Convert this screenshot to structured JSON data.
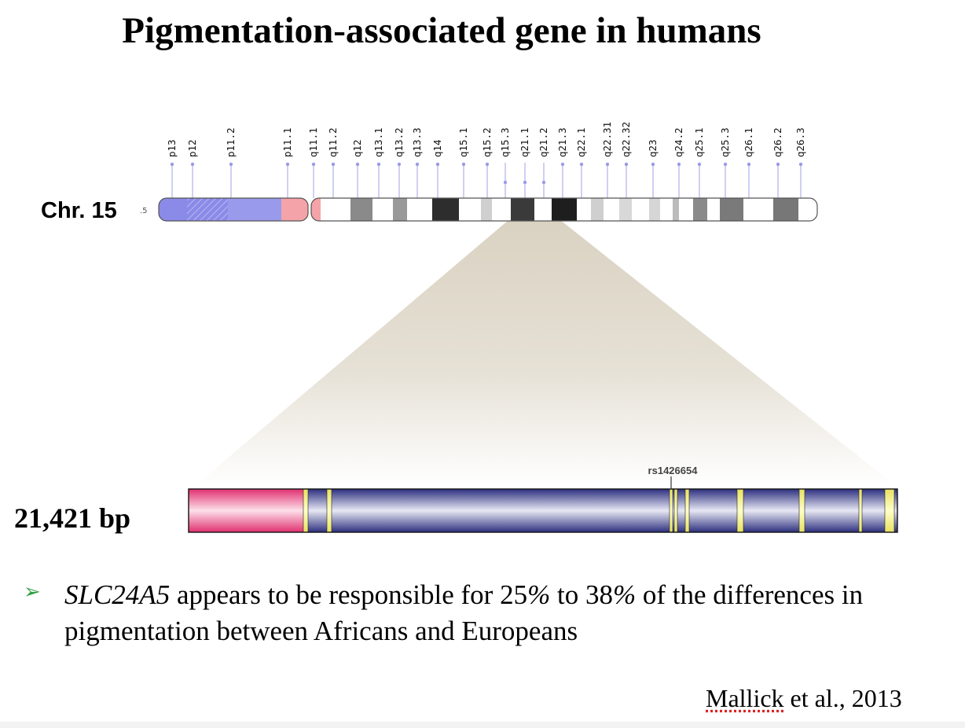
{
  "title": "Pigmentation-associated gene in humans",
  "chromosome": {
    "label": "Chr. 15",
    "scale_mark": ".5",
    "bands": [
      "p13",
      "p12",
      "p11.2",
      "p11.1",
      "q11.1",
      "q11.2",
      "q12",
      "q13.1",
      "q13.2",
      "q13.3",
      "q14",
      "q15.1",
      "q15.2",
      "q15.3",
      "q21.1",
      "q21.2",
      "q21.3",
      "q22.1",
      "q22.31",
      "q22.32",
      "q23",
      "q24.2",
      "q25.1",
      "q25.3",
      "q26.1",
      "q26.2",
      "q26.3"
    ]
  },
  "gene": {
    "length_label": "21,421 bp",
    "snp_label": "rs1426654"
  },
  "bullet": {
    "gene_name": "SLC24A5",
    "text_1": " appears to be responsible for 25",
    "pct_1": "%",
    "text_2": " to 38",
    "pct_2": "%",
    "text_3": " of the differences in pigmentation between Africans and Europeans"
  },
  "citation": {
    "author": "Mallick",
    "rest": " et al., 2013"
  },
  "colors": {
    "p_arm": "#8a8ae8",
    "centromere": "#f4a3a8",
    "zoom_fill": "#ddd6c6",
    "gene_utr": "#e8467f",
    "gene_body": "#3a3d8c",
    "exon": "#f4f080",
    "bullet": "#2e9e45"
  }
}
